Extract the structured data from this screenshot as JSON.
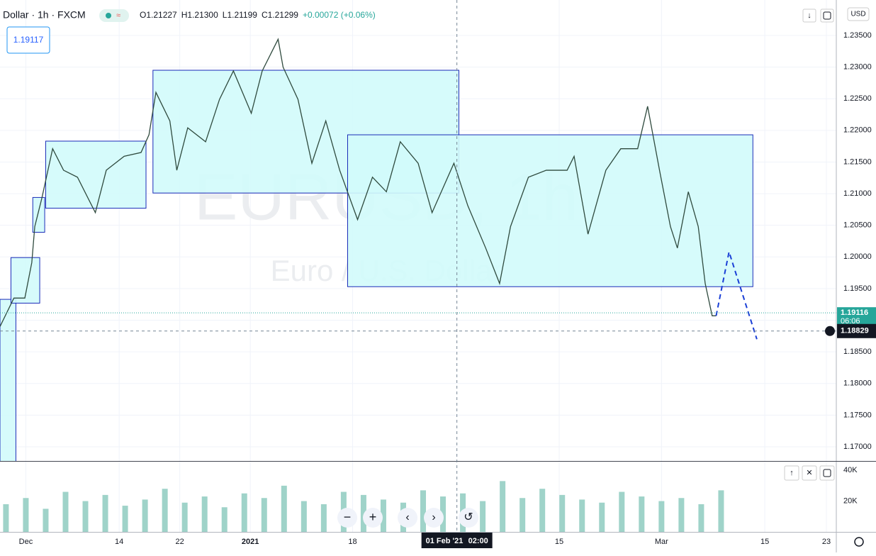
{
  "header": {
    "symbol": "Dollar · 1h · FXCM",
    "ohlc": [
      "O1.21227",
      "H1.21300",
      "L1.21199",
      "C1.21299",
      "+0.00072 (+0.06%)"
    ],
    "currency": "USD"
  },
  "chart_data": {
    "type": "line",
    "watermark": "EURUSD, 1h",
    "watermark_sub": "Euro / U.S. Dollar",
    "price_badge": "1.19117",
    "x": [
      -2.6,
      -1.2,
      -0.1,
      0.6,
      0.9,
      1.6,
      2.7,
      3.8,
      5.2,
      7.0,
      8.1,
      9.9,
      11.6,
      12.4,
      13.1,
      14.5,
      15.2,
      16.3,
      18.1,
      19.5,
      20.9,
      22.7,
      23.8,
      25.4,
      25.9,
      27.4,
      28.8,
      30.2,
      31.6,
      33.4,
      34.9,
      36.3,
      37.7,
      39.5,
      40.9,
      43.1,
      44.5,
      46.3,
      47.7,
      48.8,
      50.6,
      52.4,
      54.5,
      55.2,
      56.6,
      58.4,
      59.9,
      61.6,
      62.6,
      63.8,
      64.9,
      65.6,
      66.7,
      67.7,
      68.4,
      69.1,
      69.5
    ],
    "values": [
      1.189,
      1.1935,
      1.1935,
      1.1991,
      1.2048,
      1.2092,
      1.2171,
      1.2137,
      1.2126,
      1.207,
      1.2137,
      1.2159,
      1.2165,
      1.2193,
      1.226,
      1.2215,
      1.2137,
      1.2204,
      1.2182,
      1.2249,
      1.2294,
      1.2227,
      1.2294,
      1.2344,
      1.23,
      1.2249,
      1.2148,
      1.2215,
      1.2137,
      1.2059,
      1.2126,
      1.2103,
      1.2182,
      1.2148,
      1.207,
      1.2148,
      1.2081,
      1.2014,
      1.1958,
      1.2048,
      1.2126,
      1.2137,
      1.2137,
      1.2159,
      1.2036,
      1.2137,
      1.2171,
      1.2171,
      1.2238,
      1.2137,
      1.2048,
      1.2014,
      1.2103,
      1.2048,
      1.1958,
      1.1907,
      1.1907
    ],
    "color": "#2f4a3e",
    "xlim": [
      -2.6,
      81.6
    ],
    "xticks": [
      {
        "value": 0,
        "label": "Dec"
      },
      {
        "value": 9.4,
        "label": "14"
      },
      {
        "value": 15.5,
        "label": "22"
      },
      {
        "value": 22.6,
        "label": "2021"
      },
      {
        "value": 32.9,
        "label": "18"
      },
      {
        "value": 53.7,
        "label": "15"
      },
      {
        "value": 64,
        "label": "Mar"
      },
      {
        "value": 74.4,
        "label": "15"
      },
      {
        "value": 80.6,
        "label": "23"
      }
    ],
    "ylim": [
      1.16776,
      1.2406
    ],
    "yticks": [
      {
        "value": 1.17,
        "label": "1.17000"
      },
      {
        "value": 1.175,
        "label": "1.17500"
      },
      {
        "value": 1.18,
        "label": "1.18000"
      },
      {
        "value": 1.185,
        "label": "1.18500"
      },
      {
        "value": 1.19,
        "label": "1.19000"
      },
      {
        "value": 1.195,
        "label": "1.19500"
      },
      {
        "value": 1.2,
        "label": "1.20000"
      },
      {
        "value": 1.205,
        "label": "1.20500"
      },
      {
        "value": 1.21,
        "label": "1.21000"
      },
      {
        "value": 1.215,
        "label": "1.21500"
      },
      {
        "value": 1.22,
        "label": "1.22000"
      },
      {
        "value": 1.225,
        "label": "1.22500"
      },
      {
        "value": 1.23,
        "label": "1.23000"
      },
      {
        "value": 1.235,
        "label": "1.23500"
      }
    ],
    "grid": true,
    "zone_fill": "#d2fbfb",
    "zone_stroke": "#1a2bb8",
    "zones": [
      {
        "x": [
          -2.6,
          -1.0
        ],
        "y": [
          1.16,
          1.1933
        ]
      },
      {
        "x": [
          -1.5,
          1.4
        ],
        "y": [
          1.1927,
          1.1999
        ]
      },
      {
        "x": [
          0.7,
          1.9
        ],
        "y": [
          1.2039,
          1.2094
        ]
      },
      {
        "x": [
          2.0,
          12.1
        ],
        "y": [
          1.2077,
          1.2183
        ]
      },
      {
        "x": [
          12.8,
          43.6
        ],
        "y": [
          1.2101,
          1.2295
        ]
      },
      {
        "x": [
          32.4,
          73.2
        ],
        "y": [
          1.1953,
          1.2193
        ]
      }
    ],
    "projection": {
      "x": [
        69.5,
        70.8,
        73.6
      ],
      "values": [
        1.1907,
        1.2008,
        1.187
      ],
      "color": "#1a3fd6"
    },
    "last_price": {
      "value": 1.19116,
      "label": "1.19116",
      "countdown": "06:06",
      "color": "#26a69a"
    },
    "crosshair": {
      "x": 43.4,
      "x_label": "01 Feb '21",
      "time_label": "02:00",
      "value": 1.18829,
      "label": "1.18829"
    },
    "volume": {
      "x": [
        -2,
        0,
        2,
        4,
        6,
        8,
        10,
        12,
        14,
        16,
        18,
        20,
        22,
        24,
        26,
        28,
        30,
        32,
        34,
        36,
        38,
        40,
        42,
        44,
        46,
        48,
        50,
        52,
        54,
        56,
        58,
        60,
        62,
        64,
        66,
        68,
        70
      ],
      "values": [
        18000,
        22000,
        15000,
        26000,
        20000,
        24000,
        17000,
        21000,
        28000,
        19000,
        23000,
        16000,
        25000,
        22000,
        30000,
        20000,
        18000,
        26000,
        24000,
        21000,
        19000,
        27000,
        23000,
        25000,
        20000,
        33000,
        22000,
        28000,
        24000,
        21000,
        19000,
        26000,
        23000,
        20000,
        22000,
        18000,
        27000
      ],
      "ylim": [
        0,
        45600
      ],
      "yticks": [
        {
          "value": 20000,
          "label": "20K"
        },
        {
          "value": 40000,
          "label": "40K"
        }
      ],
      "color": "#9fd3c9"
    }
  }
}
